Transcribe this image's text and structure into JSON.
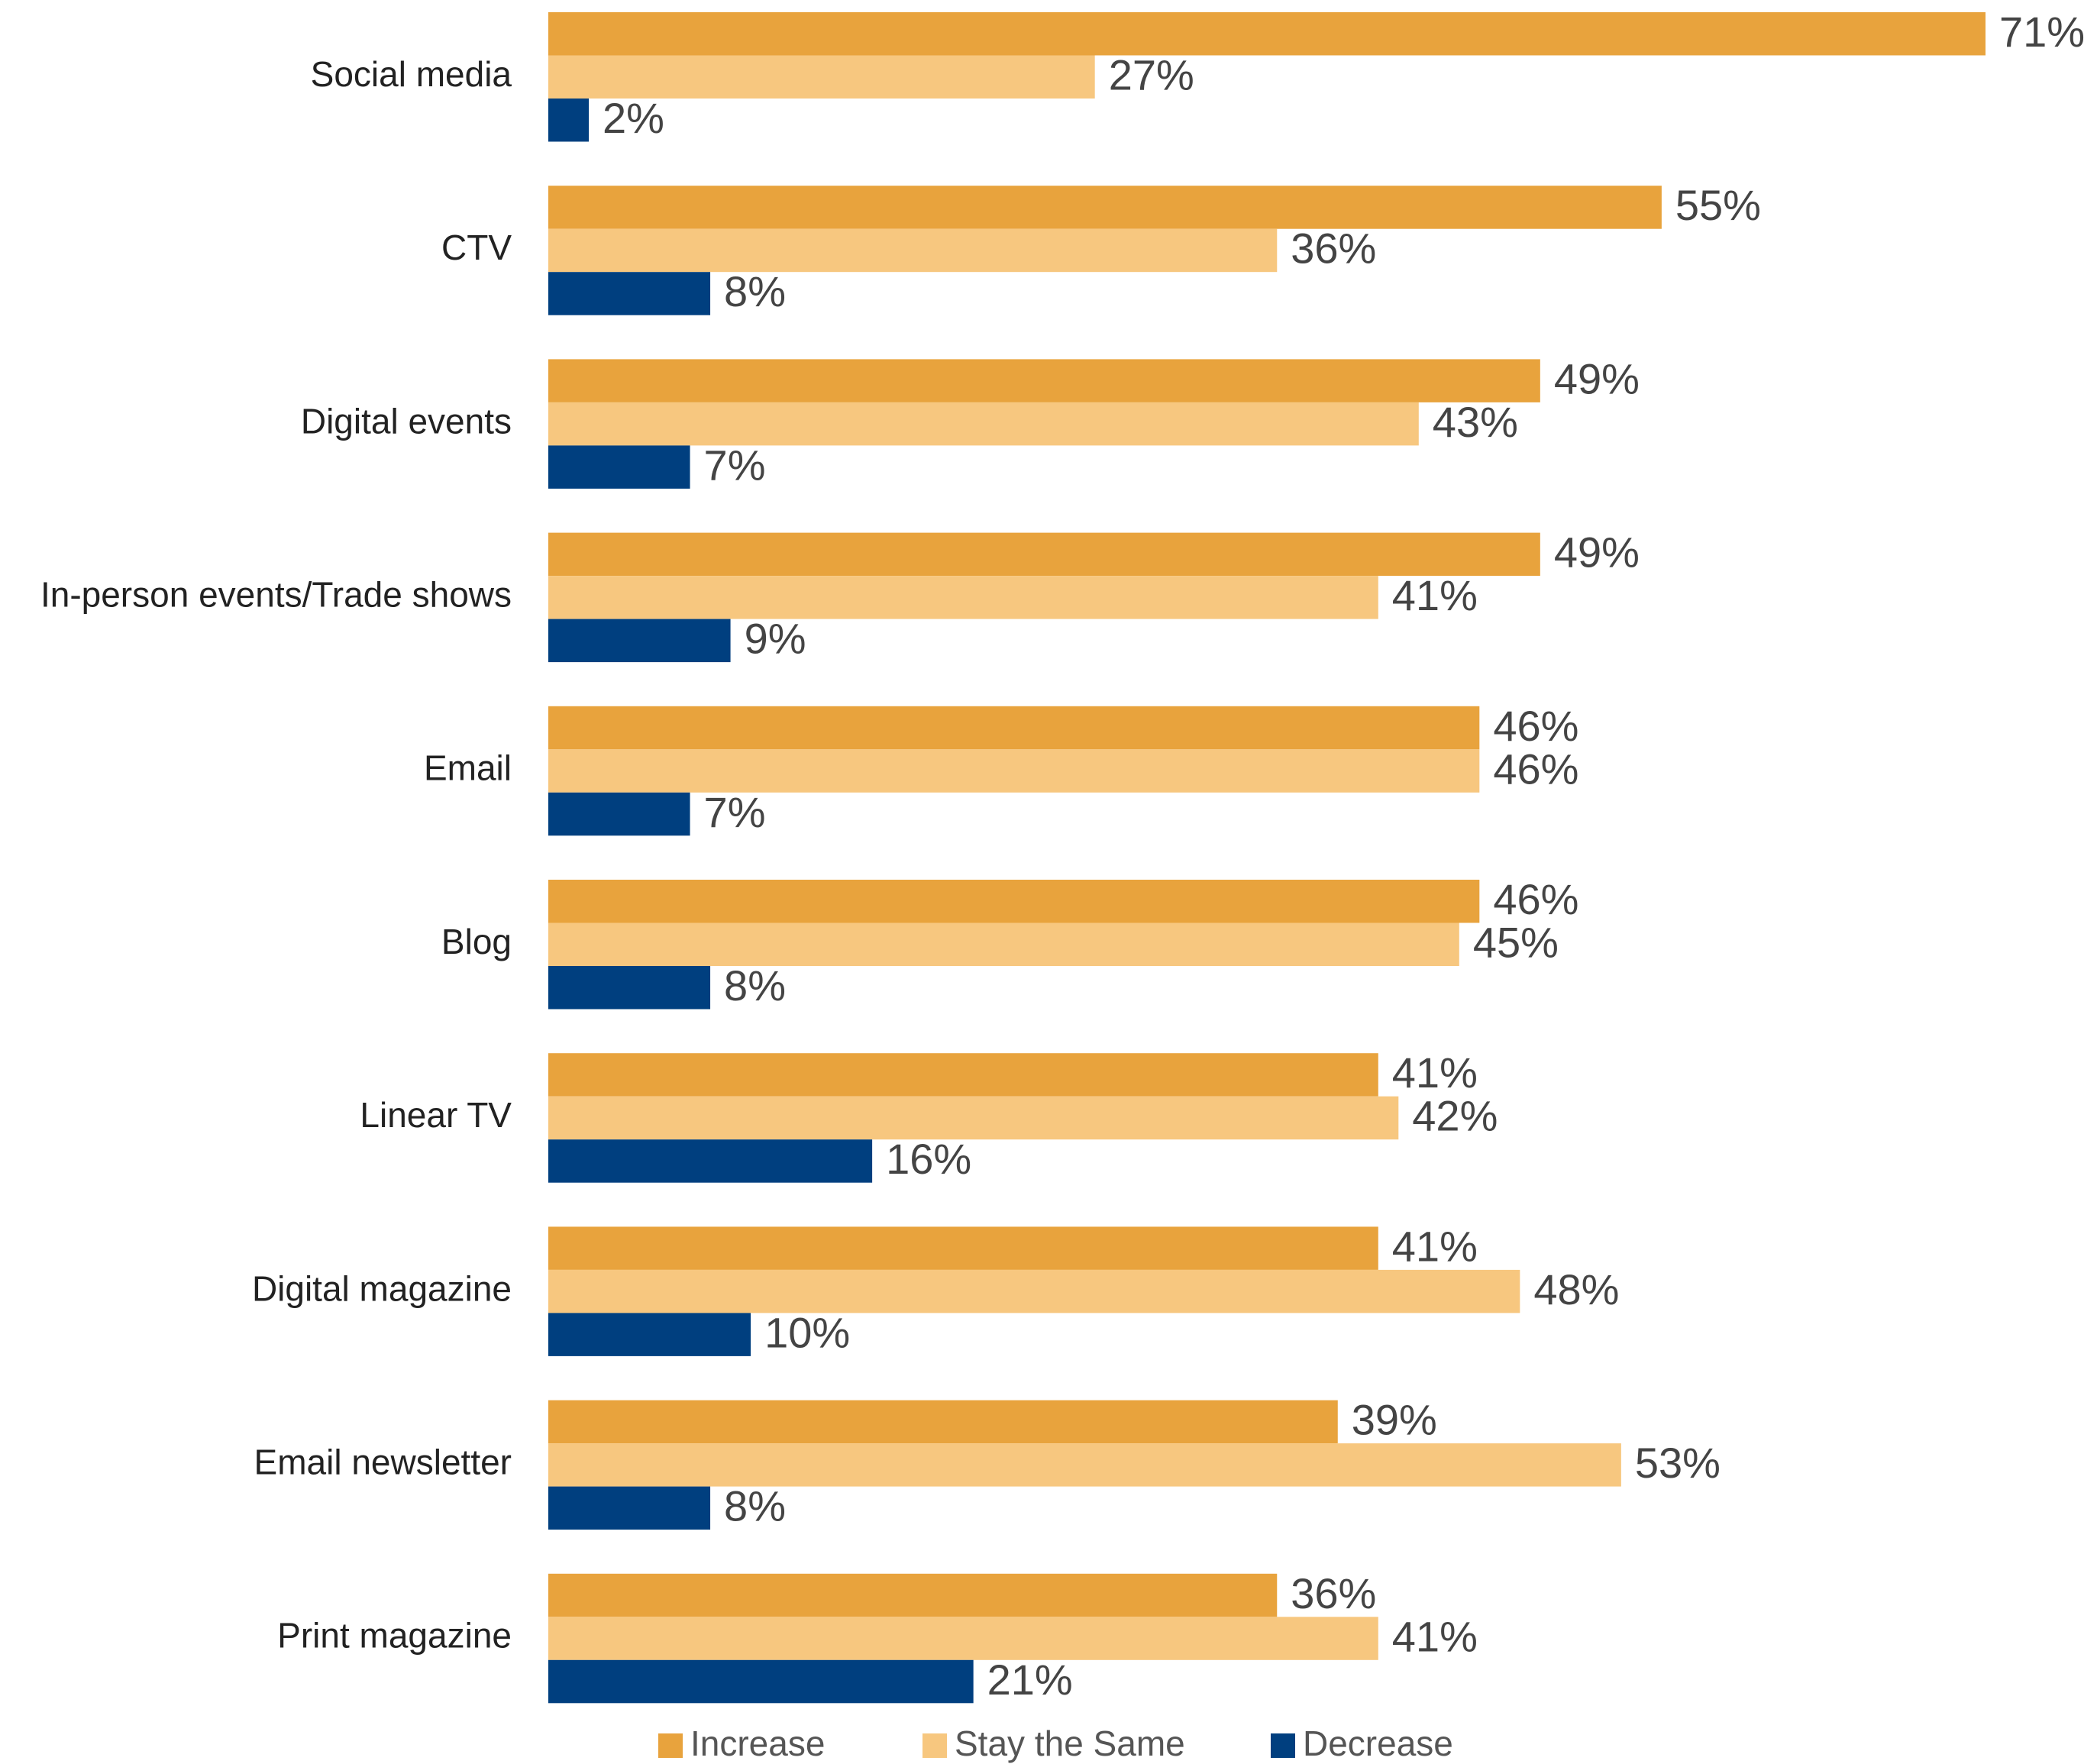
{
  "chart_data": {
    "type": "bar",
    "orientation": "horizontal",
    "title": "",
    "xlabel": "",
    "ylabel": "",
    "xlim": [
      0,
      71
    ],
    "grid": false,
    "legend_position": "bottom",
    "value_suffix": "%",
    "categories": [
      "Social media",
      "CTV",
      "Digital events",
      "In-person events/Trade shows",
      "Email",
      "Blog",
      "Linear TV",
      "Digital magazine",
      "Email newsletter",
      "Print magazine"
    ],
    "series": [
      {
        "name": "Increase",
        "color": "#E8A33D",
        "values": [
          71,
          55,
          49,
          49,
          46,
          46,
          41,
          41,
          39,
          36
        ]
      },
      {
        "name": "Stay the Same",
        "color": "#F7C77F",
        "values": [
          27,
          36,
          43,
          41,
          46,
          45,
          42,
          48,
          53,
          41
        ]
      },
      {
        "name": "Decrease",
        "color": "#003F7F",
        "values": [
          2,
          8,
          7,
          9,
          7,
          8,
          16,
          10,
          8,
          21
        ]
      }
    ]
  }
}
